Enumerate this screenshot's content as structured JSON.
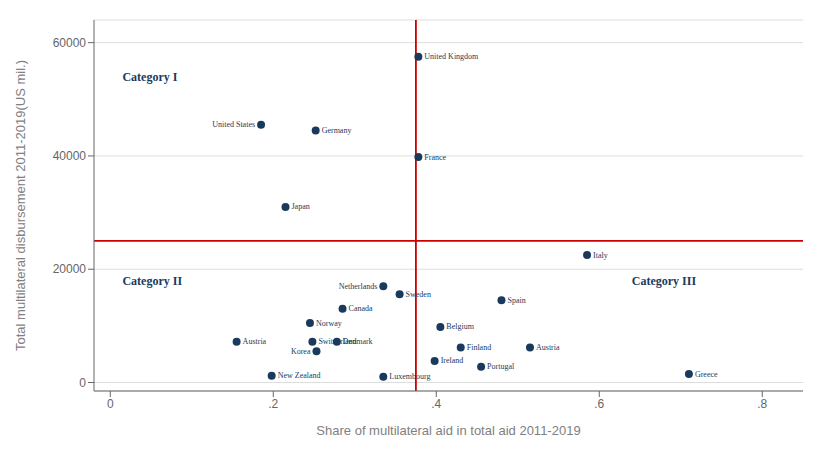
{
  "chart_data": {
    "type": "scatter",
    "xlabel": "Share of multilateral aid in total aid 2011-2019",
    "ylabel": "Total multilateral disbursement 2011-2019(US mil.)",
    "color": "#1a3a5c",
    "point_labels": [
      "United Kingdom",
      "United States",
      "Germany",
      "France",
      "Japan",
      "Italy",
      "Netherlands",
      "Sweden",
      "Canada",
      "Spain",
      "Norway",
      "Belgium",
      "Austria",
      "Switzerland",
      "Denmark",
      "Finland",
      "Austria",
      "Korea",
      "Ireland",
      "Portugal",
      "New Zealand",
      "Luxembourg",
      "Greece"
    ],
    "x": [
      0.378,
      0.185,
      0.252,
      0.378,
      0.215,
      0.585,
      0.335,
      0.355,
      0.285,
      0.48,
      0.245,
      0.405,
      0.155,
      0.248,
      0.278,
      0.43,
      0.515,
      0.253,
      0.398,
      0.455,
      0.198,
      0.335,
      0.71
    ],
    "values": [
      57500,
      45500,
      44500,
      39800,
      31000,
      22500,
      17000,
      15600,
      13000,
      14500,
      10500,
      9800,
      7200,
      7200,
      7200,
      6200,
      6200,
      5500,
      3800,
      2800,
      1200,
      1000,
      1500
    ],
    "reference_lines": [
      {
        "axis": "y",
        "value": 25000,
        "color": "#cc0000"
      },
      {
        "axis": "x",
        "value": 0.375,
        "color": "#cc0000"
      }
    ],
    "annotations": [
      {
        "text": "Category I",
        "x": 0.01,
        "y": 54000
      },
      {
        "text": "Category II",
        "x": 0.01,
        "y": 18000
      },
      {
        "text": "Category III",
        "x": 0.635,
        "y": 18000
      }
    ],
    "xlim": [
      -0.02,
      0.85
    ],
    "ylim": [
      -1500,
      64000
    ],
    "xticks": [
      0,
      {
        "value": 0.2,
        "label": ".2"
      },
      {
        "value": 0.4,
        "label": ".4"
      },
      {
        "value": 0.6,
        "label": ".6"
      },
      {
        "value": 0.8,
        "label": ".8"
      }
    ],
    "yticks": [
      0,
      20000,
      40000,
      60000
    ],
    "grid": "y"
  }
}
